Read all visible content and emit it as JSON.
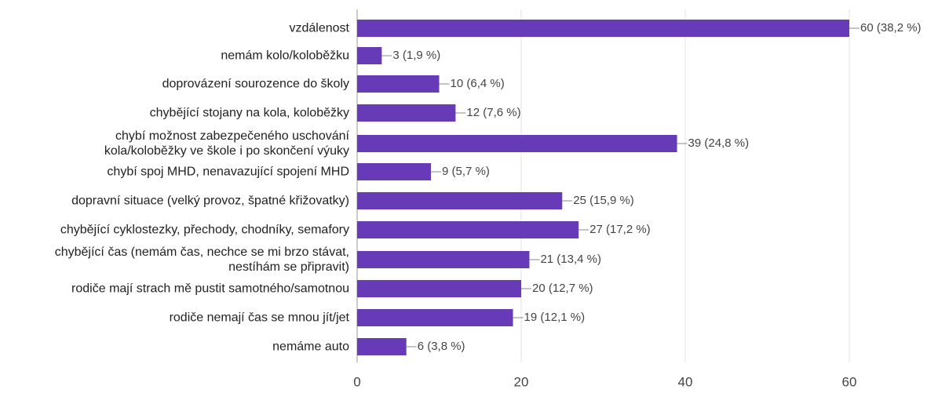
{
  "chart_data": {
    "type": "bar",
    "orientation": "horizontal",
    "categories": [
      "vzdálenost",
      "nemám kolo/koloběžku",
      "doprovázení sourozence do školy",
      "chybějící stojany na kola, koloběžky",
      "chybí možnost zabezpečeného uschování\nkola/koloběžky ve škole i po skončení výuky",
      "chybí spoj MHD, nenavazující spojení MHD",
      "dopravní situace (velký provoz, špatné křižovatky)",
      "chybějící cyklostezky, přechody, chodníky, semafory",
      "chybějící čas (nemám čas, nechce se mi brzo stávat,\nnestíhám se připravit)",
      "rodiče mají strach mě pustit samotného/samotnou",
      "rodiče nemají čas se mnou jít/jet",
      "nemáme auto"
    ],
    "values": [
      60,
      3,
      10,
      12,
      39,
      9,
      25,
      27,
      21,
      20,
      19,
      6
    ],
    "value_labels": [
      "60 (38,2 %)",
      "3 (1,9 %)",
      "10 (6,4 %)",
      "12 (7,6 %)",
      "39 (24,8 %)",
      "9 (5,7 %)",
      "25 (15,9 %)",
      "27 (17,2 %)",
      "21 (13,4 %)",
      "20 (12,7 %)",
      "19 (12,1 %)",
      "6 (3,8 %)"
    ],
    "color": "#673ab7",
    "xlim": [
      0,
      60
    ],
    "xticks": [
      0,
      20,
      40,
      60
    ],
    "grid": true
  }
}
